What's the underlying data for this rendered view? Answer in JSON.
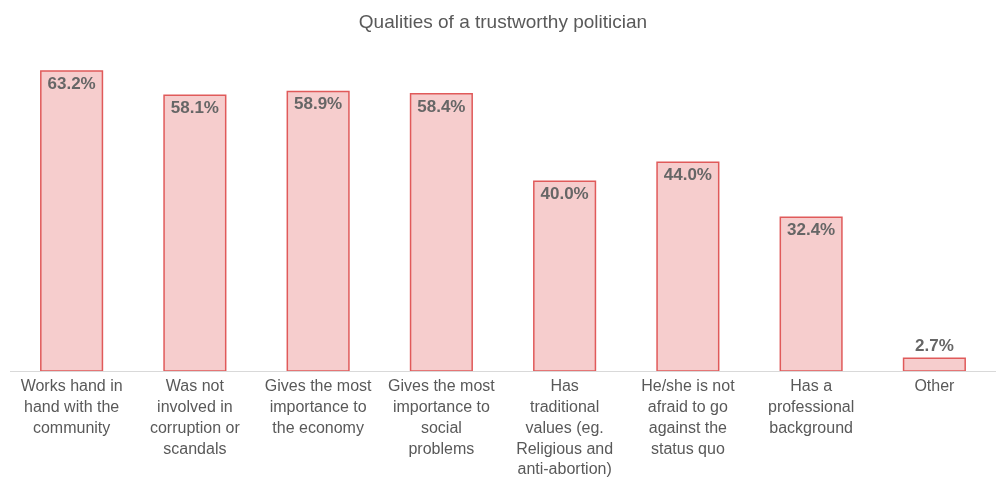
{
  "chart_data": {
    "type": "bar",
    "title": "Qualities of a trustworthy politician",
    "categories": [
      "Works hand in hand with the community",
      "Was not involved in corruption or scandals",
      "Gives the most importance to the economy",
      "Gives the most importance to social problems",
      "Has traditional values (eg. Religious and anti-abortion)",
      "He/she is not afraid to go against the status quo",
      "Has a professional background",
      "Other"
    ],
    "values": [
      63.2,
      58.1,
      58.9,
      58.4,
      40.0,
      44.0,
      32.4,
      2.7
    ],
    "value_labels": [
      "63.2%",
      "58.1%",
      "58.9%",
      "58.4%",
      "40.0%",
      "44.0%",
      "32.4%",
      "2.7%"
    ],
    "color": "#e05a5a",
    "legend": false
  }
}
